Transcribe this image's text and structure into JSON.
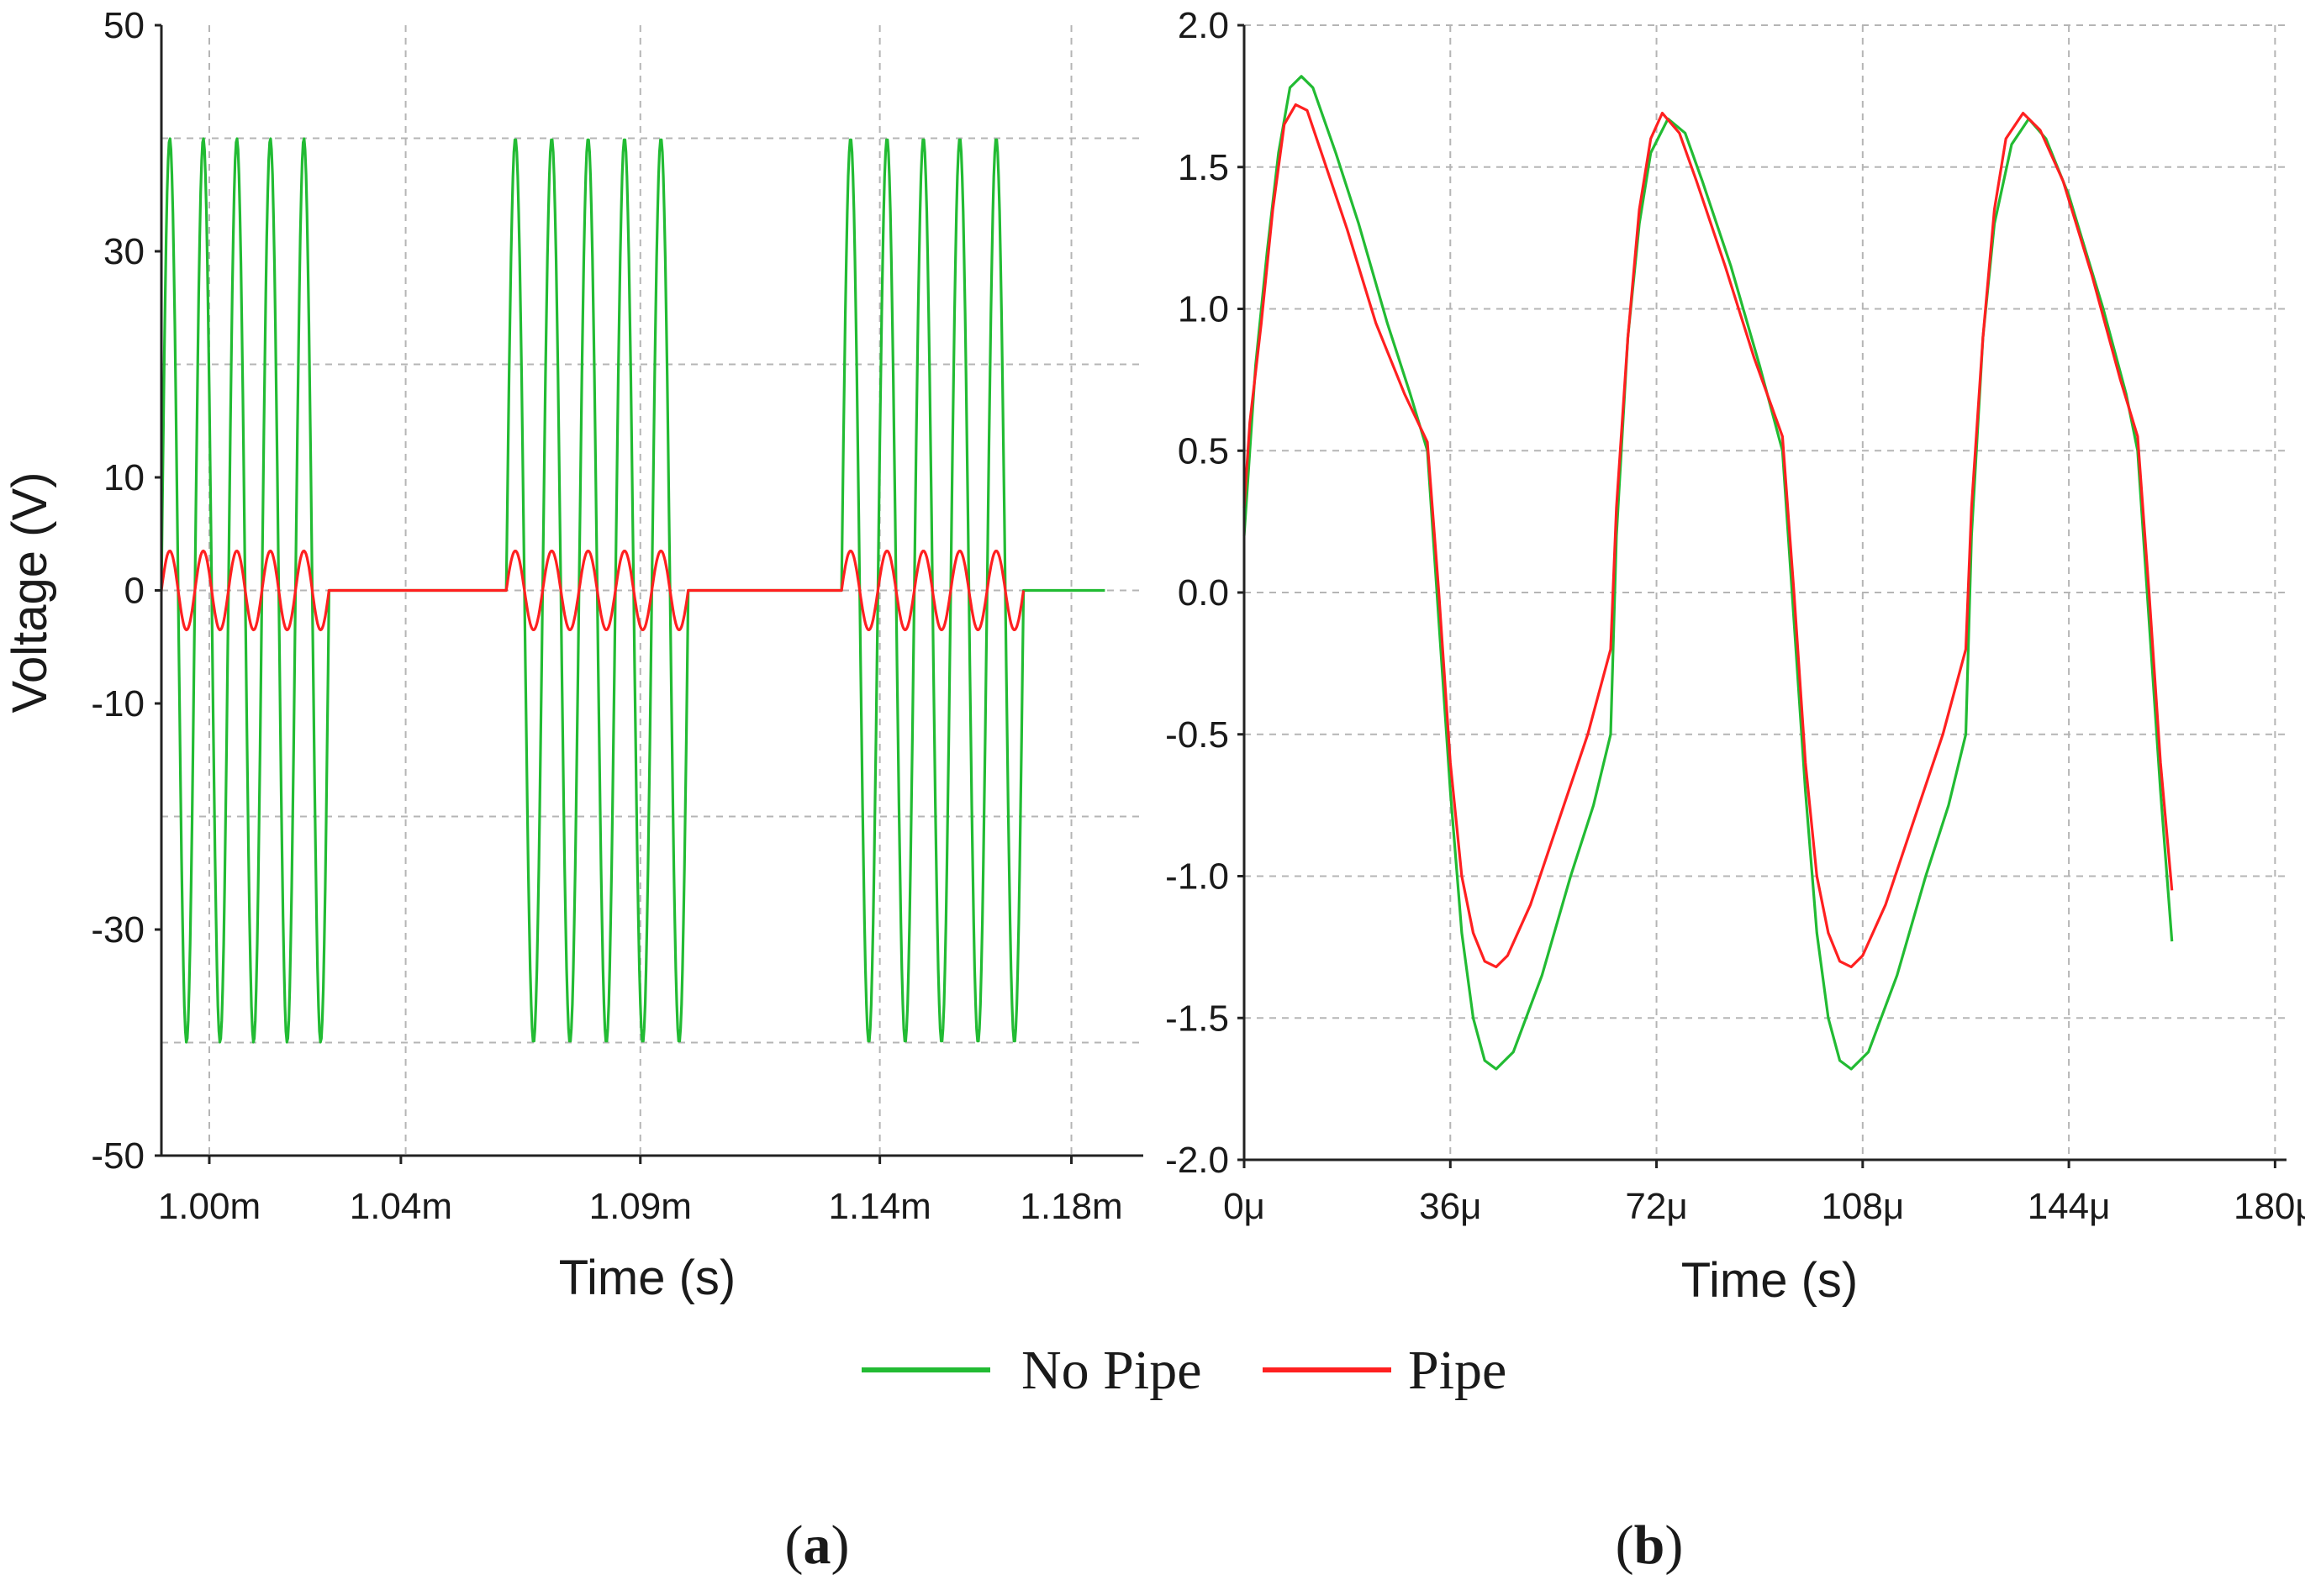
{
  "colors": {
    "no_pipe": "#22bb33",
    "pipe": "#ff2020",
    "axis": "#222222",
    "grid": "#b5b5b5"
  },
  "legend": {
    "no_pipe_label": "No Pipe",
    "pipe_label": "Pipe"
  },
  "chart_data": [
    {
      "id": "a",
      "type": "line",
      "panel_label": "a",
      "xlabel": "Time (s)",
      "ylabel": "Voltage (V)",
      "xlim": [
        0.99,
        1.195
      ],
      "ylim": [
        -50,
        50
      ],
      "xticks": [
        {
          "value": 1.0,
          "label": "1.00m"
        },
        {
          "value": 1.04,
          "label": "1.04m"
        },
        {
          "value": 1.09,
          "label": "1.09m"
        },
        {
          "value": 1.14,
          "label": "1.14m"
        },
        {
          "value": 1.18,
          "label": "1.18m"
        }
      ],
      "yticks": [
        {
          "value": 50,
          "label": "50"
        },
        {
          "value": 30,
          "label": "30"
        },
        {
          "value": 10,
          "label": "10"
        },
        {
          "value": 0,
          "label": "0"
        },
        {
          "value": -10,
          "label": "-10"
        },
        {
          "value": -30,
          "label": "-30"
        },
        {
          "value": -50,
          "label": "-50"
        }
      ],
      "ygrid": [
        40,
        20,
        0,
        -20,
        -40
      ],
      "xgrid": [
        1.0,
        1.041,
        1.09,
        1.14,
        1.18
      ],
      "series": [
        {
          "name": "No Pipe",
          "color": "#22bb33",
          "burst_amplitude": 40,
          "bursts": [
            [
              0.99,
              1.025,
              5
            ],
            [
              1.062,
              1.1,
              5
            ],
            [
              1.132,
              1.17,
              5
            ]
          ],
          "end_time": 1.187
        },
        {
          "name": "Pipe",
          "color": "#ff2020",
          "burst_amplitude": 3.5,
          "bursts": [
            [
              0.99,
              1.025,
              5
            ],
            [
              1.062,
              1.1,
              5
            ],
            [
              1.132,
              1.17,
              5
            ]
          ],
          "end_time": 1.17
        }
      ]
    },
    {
      "id": "b",
      "type": "line",
      "panel_label": "b",
      "xlabel": "Time (s)",
      "ylabel": "",
      "xlim": [
        0,
        182
      ],
      "ylim": [
        -2.0,
        2.0
      ],
      "xticks": [
        {
          "value": 0,
          "label": "0μ"
        },
        {
          "value": 36,
          "label": "36μ"
        },
        {
          "value": 72,
          "label": "72μ"
        },
        {
          "value": 108,
          "label": "108μ"
        },
        {
          "value": 144,
          "label": "144μ"
        },
        {
          "value": 180,
          "label": "180μ"
        }
      ],
      "yticks": [
        {
          "value": 2.0,
          "label": "2.0"
        },
        {
          "value": 1.5,
          "label": "1.5"
        },
        {
          "value": 1.0,
          "label": "1.0"
        },
        {
          "value": 0.5,
          "label": "0.5"
        },
        {
          "value": 0.0,
          "label": "0.0"
        },
        {
          "value": -0.5,
          "label": "-0.5"
        },
        {
          "value": -1.0,
          "label": "-1.0"
        },
        {
          "value": -1.5,
          "label": "-1.5"
        },
        {
          "value": -2.0,
          "label": "-2.0"
        }
      ],
      "series": [
        {
          "name": "No Pipe",
          "color": "#22bb33",
          "points": [
            [
              0,
              0.2
            ],
            [
              1,
              0.5
            ],
            [
              2,
              0.8
            ],
            [
              4,
              1.2
            ],
            [
              6,
              1.55
            ],
            [
              8,
              1.78
            ],
            [
              10,
              1.82
            ],
            [
              12,
              1.78
            ],
            [
              16,
              1.55
            ],
            [
              20,
              1.3
            ],
            [
              25,
              0.95
            ],
            [
              29,
              0.7
            ],
            [
              32,
              0.5
            ],
            [
              34,
              -0.1
            ],
            [
              36,
              -0.7
            ],
            [
              38,
              -1.2
            ],
            [
              40,
              -1.5
            ],
            [
              42,
              -1.65
            ],
            [
              44,
              -1.68
            ],
            [
              47,
              -1.62
            ],
            [
              52,
              -1.35
            ],
            [
              57,
              -1.0
            ],
            [
              61,
              -0.75
            ],
            [
              64,
              -0.5
            ],
            [
              65,
              0.2
            ],
            [
              67,
              0.9
            ],
            [
              69,
              1.3
            ],
            [
              71,
              1.55
            ],
            [
              74,
              1.67
            ],
            [
              77,
              1.62
            ],
            [
              80,
              1.45
            ],
            [
              85,
              1.15
            ],
            [
              90,
              0.8
            ],
            [
              94,
              0.5
            ],
            [
              96,
              -0.1
            ],
            [
              98,
              -0.7
            ],
            [
              100,
              -1.2
            ],
            [
              102,
              -1.5
            ],
            [
              104,
              -1.65
            ],
            [
              106,
              -1.68
            ],
            [
              109,
              -1.62
            ],
            [
              114,
              -1.35
            ],
            [
              119,
              -1.0
            ],
            [
              123,
              -0.75
            ],
            [
              126,
              -0.5
            ],
            [
              127,
              0.2
            ],
            [
              129,
              0.9
            ],
            [
              131,
              1.3
            ],
            [
              134,
              1.58
            ],
            [
              137,
              1.67
            ],
            [
              140,
              1.6
            ],
            [
              144,
              1.4
            ],
            [
              150,
              1.0
            ],
            [
              154,
              0.7
            ],
            [
              156,
              0.5
            ],
            [
              158,
              -0.1
            ],
            [
              160,
              -0.7
            ],
            [
              162,
              -1.23
            ]
          ]
        },
        {
          "name": "Pipe",
          "color": "#ff2020",
          "points": [
            [
              0,
              0.3
            ],
            [
              1,
              0.6
            ],
            [
              3,
              0.95
            ],
            [
              5,
              1.35
            ],
            [
              7,
              1.65
            ],
            [
              9,
              1.72
            ],
            [
              11,
              1.7
            ],
            [
              14,
              1.52
            ],
            [
              18,
              1.28
            ],
            [
              23,
              0.95
            ],
            [
              28,
              0.7
            ],
            [
              32,
              0.53
            ],
            [
              34,
              0.0
            ],
            [
              36,
              -0.6
            ],
            [
              38,
              -1.0
            ],
            [
              40,
              -1.2
            ],
            [
              42,
              -1.3
            ],
            [
              44,
              -1.32
            ],
            [
              46,
              -1.28
            ],
            [
              50,
              -1.1
            ],
            [
              55,
              -0.8
            ],
            [
              60,
              -0.5
            ],
            [
              64,
              -0.2
            ],
            [
              65,
              0.3
            ],
            [
              67,
              0.9
            ],
            [
              69,
              1.35
            ],
            [
              71,
              1.6
            ],
            [
              73,
              1.69
            ],
            [
              76,
              1.62
            ],
            [
              79,
              1.45
            ],
            [
              84,
              1.15
            ],
            [
              89,
              0.83
            ],
            [
              94,
              0.55
            ],
            [
              96,
              0.0
            ],
            [
              98,
              -0.6
            ],
            [
              100,
              -1.0
            ],
            [
              102,
              -1.2
            ],
            [
              104,
              -1.3
            ],
            [
              106,
              -1.32
            ],
            [
              108,
              -1.28
            ],
            [
              112,
              -1.1
            ],
            [
              117,
              -0.8
            ],
            [
              122,
              -0.5
            ],
            [
              126,
              -0.2
            ],
            [
              127,
              0.3
            ],
            [
              129,
              0.9
            ],
            [
              131,
              1.35
            ],
            [
              133,
              1.6
            ],
            [
              136,
              1.69
            ],
            [
              139,
              1.63
            ],
            [
              143,
              1.45
            ],
            [
              148,
              1.12
            ],
            [
              153,
              0.75
            ],
            [
              156,
              0.55
            ],
            [
              158,
              0.0
            ],
            [
              160,
              -0.6
            ],
            [
              162,
              -1.05
            ]
          ]
        }
      ]
    }
  ]
}
